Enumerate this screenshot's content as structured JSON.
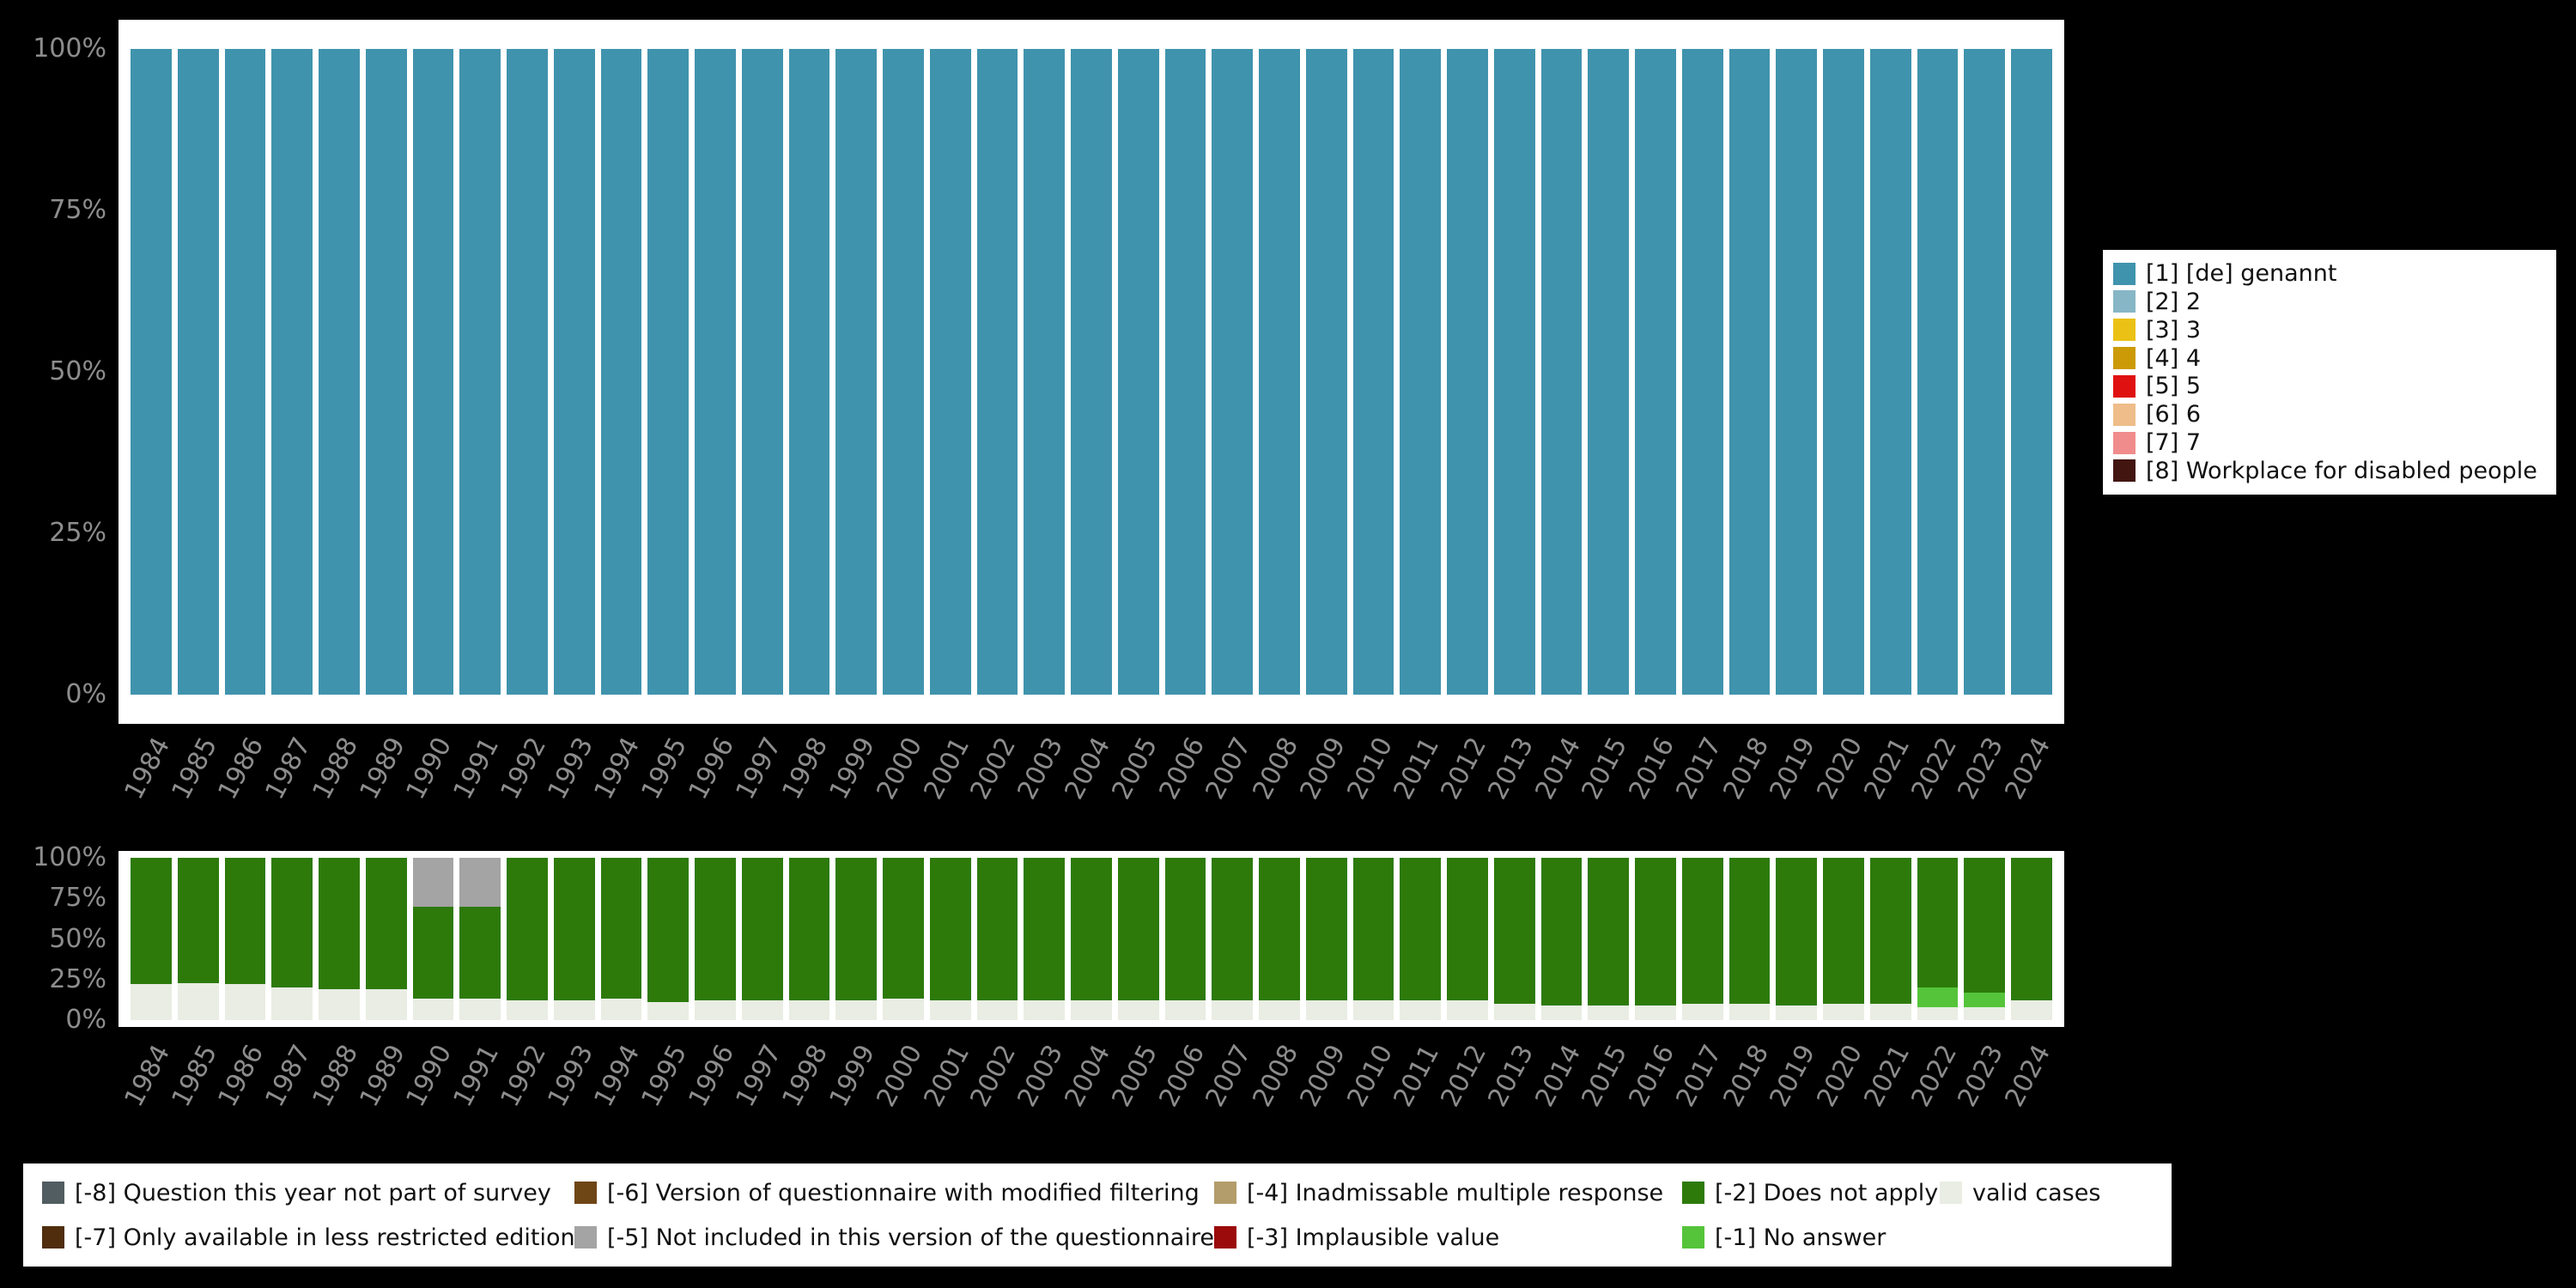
{
  "colors": {
    "page_background": "#000000",
    "panel_background": "#ffffff",
    "axis_text": "#8d8d8d",
    "legend_text": "#111111"
  },
  "chart_data": [
    {
      "type": "bar",
      "stacked": true,
      "title": "",
      "xlabel": "",
      "ylabel": "",
      "ylim": [
        0,
        100
      ],
      "grid": false,
      "legend_position": "right",
      "y_ticks": [
        "0%",
        "25%",
        "50%",
        "75%",
        "100%"
      ],
      "x": [
        1984,
        1985,
        1986,
        1987,
        1988,
        1989,
        1990,
        1991,
        1992,
        1993,
        1994,
        1995,
        1996,
        1997,
        1998,
        1999,
        2000,
        2001,
        2002,
        2003,
        2004,
        2005,
        2006,
        2007,
        2008,
        2009,
        2010,
        2011,
        2012,
        2013,
        2014,
        2015,
        2016,
        2017,
        2018,
        2019,
        2020,
        2021,
        2022,
        2023,
        2024
      ],
      "series": [
        {
          "name": "[1] [de] genannt",
          "color": "#4093ad",
          "values": [
            100,
            100,
            100,
            100,
            100,
            100,
            100,
            100,
            100,
            100,
            100,
            100,
            100,
            100,
            100,
            100,
            100,
            100,
            100,
            100,
            100,
            100,
            100,
            100,
            100,
            100,
            100,
            100,
            100,
            100,
            100,
            100,
            100,
            100,
            100,
            100,
            100,
            100,
            100,
            100,
            100
          ]
        }
      ],
      "legend_items": [
        {
          "label": "[1] [de] genannt",
          "color": "#4093ad"
        },
        {
          "label": "[2] 2",
          "color": "#87b6c6"
        },
        {
          "label": "[3] 3",
          "color": "#ecc115"
        },
        {
          "label": "[4] 4",
          "color": "#cc9a06"
        },
        {
          "label": "[5] 5",
          "color": "#e01111"
        },
        {
          "label": "[6] 6",
          "color": "#eebd89"
        },
        {
          "label": "[7] 7",
          "color": "#f18c8c"
        },
        {
          "label": "[8] Workplace for disabled people",
          "color": "#421511"
        }
      ]
    },
    {
      "type": "bar",
      "stacked": true,
      "title": "",
      "xlabel": "",
      "ylabel": "",
      "ylim": [
        0,
        100
      ],
      "grid": false,
      "legend_position": "bottom",
      "y_ticks": [
        "0%",
        "25%",
        "50%",
        "75%",
        "100%"
      ],
      "x": [
        1984,
        1985,
        1986,
        1987,
        1988,
        1989,
        1990,
        1991,
        1992,
        1993,
        1994,
        1995,
        1996,
        1997,
        1998,
        1999,
        2000,
        2001,
        2002,
        2003,
        2004,
        2005,
        2006,
        2007,
        2008,
        2009,
        2010,
        2011,
        2012,
        2013,
        2014,
        2015,
        2016,
        2017,
        2018,
        2019,
        2020,
        2021,
        2022,
        2023,
        2024
      ],
      "series": [
        {
          "name": "valid cases",
          "color": "#e9ede3",
          "values": [
            22,
            23,
            22,
            20,
            19,
            19,
            13,
            13,
            12,
            12,
            13,
            11,
            12,
            12,
            12,
            12,
            13,
            12,
            12,
            12,
            12,
            12,
            12,
            12,
            12,
            12,
            12,
            12,
            12,
            10,
            9,
            9,
            9,
            10,
            10,
            9,
            10,
            10,
            8,
            8,
            12
          ]
        },
        {
          "name": "[-1] No answer",
          "color": "#55c43a",
          "values": [
            0,
            0,
            0,
            0,
            0,
            0,
            0,
            0,
            0,
            0,
            0,
            0,
            0,
            0,
            0,
            0,
            0,
            0,
            0,
            0,
            0,
            0,
            0,
            0,
            0,
            0,
            0,
            0,
            0,
            0,
            0,
            0,
            0,
            0,
            0,
            0,
            0,
            0,
            12,
            9,
            0
          ]
        },
        {
          "name": "[-2] Does not apply",
          "color": "#2d7a0b",
          "values": [
            78,
            77,
            78,
            80,
            81,
            81,
            57,
            57,
            88,
            88,
            87,
            89,
            88,
            88,
            88,
            88,
            87,
            88,
            88,
            88,
            88,
            88,
            88,
            88,
            88,
            88,
            88,
            88,
            88,
            90,
            91,
            91,
            91,
            90,
            90,
            91,
            90,
            90,
            80,
            83,
            88
          ]
        },
        {
          "name": "[-5] Not included in this version of the questionnaire",
          "color": "#a4a4a4",
          "values": [
            0,
            0,
            0,
            0,
            0,
            0,
            30,
            30,
            0,
            0,
            0,
            0,
            0,
            0,
            0,
            0,
            0,
            0,
            0,
            0,
            0,
            0,
            0,
            0,
            0,
            0,
            0,
            0,
            0,
            0,
            0,
            0,
            0,
            0,
            0,
            0,
            0,
            0,
            0,
            0,
            0
          ]
        }
      ],
      "legend_items": [
        {
          "label": "[-8] Question this year not part of survey",
          "color": "#515d60"
        },
        {
          "label": "[-7] Only available in less restricted edition",
          "color": "#4f2d0d"
        },
        {
          "label": "[-6] Version of questionnaire with modified filtering",
          "color": "#6e4515"
        },
        {
          "label": "[-5] Not included in this version of the questionnaire",
          "color": "#a4a4a4"
        },
        {
          "label": "[-4] Inadmissable multiple response",
          "color": "#b39d6a"
        },
        {
          "label": "[-3] Implausible value",
          "color": "#9b0b0b"
        },
        {
          "label": "[-2] Does not apply",
          "color": "#2d7a0b"
        },
        {
          "label": "[-1] No answer",
          "color": "#55c43a"
        },
        {
          "label": "valid cases",
          "color": "#e9ede3"
        }
      ]
    }
  ]
}
